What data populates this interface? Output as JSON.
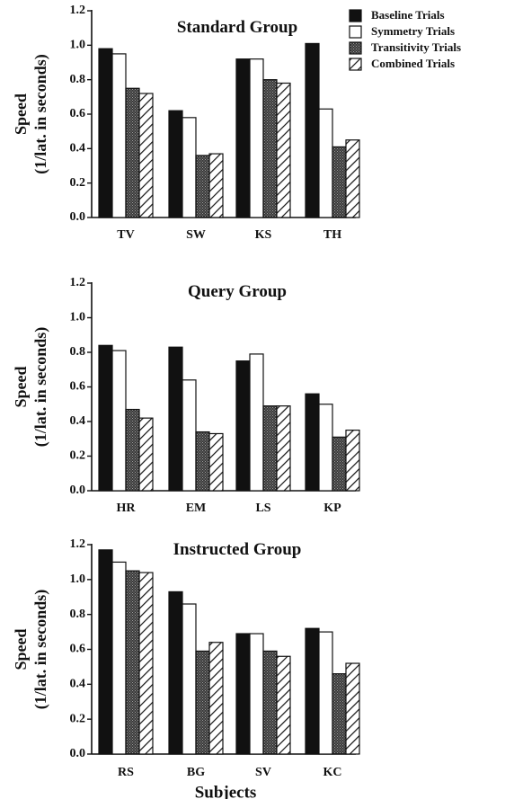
{
  "chart_data": [
    {
      "type": "bar",
      "title": "Standard Group",
      "categories": [
        "TV",
        "SW",
        "KS",
        "TH"
      ],
      "ylabel_line1": "Speed",
      "ylabel_line2": "(1/lat. in seconds)",
      "xlabel": "",
      "ylim": [
        0,
        1.2
      ],
      "yticks": [
        "0.0",
        "0.2",
        "0.4",
        "0.6",
        "0.8",
        "1.0",
        "1.2"
      ],
      "series": [
        {
          "name": "Baseline Trials",
          "values": [
            0.98,
            0.62,
            0.92,
            1.01
          ]
        },
        {
          "name": "Symmetry Trials",
          "values": [
            0.95,
            0.58,
            0.92,
            0.63
          ]
        },
        {
          "name": "Transitivity Trials",
          "values": [
            0.75,
            0.36,
            0.8,
            0.41
          ]
        },
        {
          "name": "Combined Trials",
          "values": [
            0.72,
            0.37,
            0.78,
            0.45
          ]
        }
      ],
      "legend": "top-right"
    },
    {
      "type": "bar",
      "title": "Query Group",
      "categories": [
        "HR",
        "EM",
        "LS",
        "KP"
      ],
      "ylabel_line1": "Speed",
      "ylabel_line2": "(1/lat. in seconds)",
      "xlabel": "",
      "ylim": [
        0,
        1.2
      ],
      "yticks": [
        "0.0",
        "0.2",
        "0.4",
        "0.6",
        "0.8",
        "1.0",
        "1.2"
      ],
      "series": [
        {
          "name": "Baseline Trials",
          "values": [
            0.84,
            0.83,
            0.75,
            0.56
          ]
        },
        {
          "name": "Symmetry Trials",
          "values": [
            0.81,
            0.64,
            0.79,
            0.5
          ]
        },
        {
          "name": "Transitivity Trials",
          "values": [
            0.47,
            0.34,
            0.49,
            0.31
          ]
        },
        {
          "name": "Combined Trials",
          "values": [
            0.42,
            0.33,
            0.49,
            0.35
          ]
        }
      ]
    },
    {
      "type": "bar",
      "title": "Instructed Group",
      "categories": [
        "RS",
        "BG",
        "SV",
        "KC"
      ],
      "ylabel_line1": "Speed",
      "ylabel_line2": "(1/lat. in seconds)",
      "xlabel": "Subjects",
      "ylim": [
        0,
        1.2
      ],
      "yticks": [
        "0.0",
        "0.2",
        "0.4",
        "0.6",
        "0.8",
        "1.0",
        "1.2"
      ],
      "series": [
        {
          "name": "Baseline Trials",
          "values": [
            1.17,
            0.93,
            0.69,
            0.72
          ]
        },
        {
          "name": "Symmetry Trials",
          "values": [
            1.1,
            0.86,
            0.69,
            0.7
          ]
        },
        {
          "name": "Transitivity Trials",
          "values": [
            1.05,
            0.59,
            0.59,
            0.46
          ]
        },
        {
          "name": "Combined Trials",
          "values": [
            1.04,
            0.64,
            0.56,
            0.52
          ]
        }
      ]
    }
  ],
  "series_styles": [
    "solid-black",
    "white",
    "dotted-dark",
    "hatched"
  ]
}
